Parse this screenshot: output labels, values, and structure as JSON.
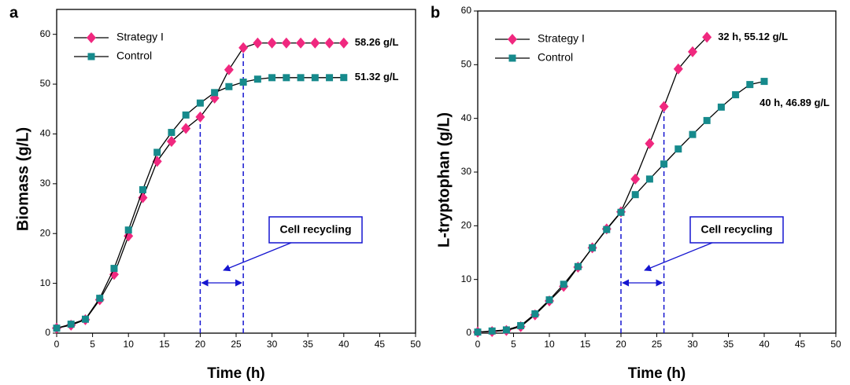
{
  "chart_data": [
    {
      "type": "line",
      "panel": "a",
      "xlabel": "Time (h)",
      "ylabel": "Biomass (g/L)",
      "xlim": [
        0,
        50
      ],
      "xticks": [
        0,
        5,
        10,
        15,
        20,
        25,
        30,
        35,
        40,
        45,
        50
      ],
      "ylim": [
        0,
        65
      ],
      "yticks": [
        0,
        10,
        20,
        30,
        40,
        50,
        60
      ],
      "series": [
        {
          "name": "Strategy I",
          "color": "#f0287f",
          "marker": "diamond",
          "x": [
            0,
            2,
            4,
            6,
            8,
            10,
            12,
            14,
            16,
            18,
            20,
            22,
            24,
            26,
            28,
            30,
            32,
            34,
            36,
            38,
            40
          ],
          "values": [
            1,
            1.6,
            2.7,
            6.7,
            11.8,
            19.5,
            27.2,
            34.5,
            38.5,
            41.1,
            43.4,
            47.2,
            52.9,
            57.3,
            58.26,
            58.26,
            58.26,
            58.26,
            58.26,
            58.26,
            58.26
          ]
        },
        {
          "name": "Control",
          "color": "#168a8c",
          "marker": "square",
          "x": [
            0,
            2,
            4,
            6,
            8,
            10,
            12,
            14,
            16,
            18,
            20,
            22,
            24,
            26,
            28,
            30,
            32,
            34,
            36,
            38,
            40
          ],
          "values": [
            1,
            1.8,
            2.8,
            7,
            13,
            20.7,
            28.8,
            36.3,
            40.3,
            43.8,
            46.2,
            48.3,
            49.5,
            50.4,
            51,
            51.3,
            51.3,
            51.3,
            51.3,
            51.3,
            51.32
          ]
        }
      ],
      "annotations": [
        "58.26 g/L",
        "51.32 g/L"
      ],
      "recycling_window": [
        20,
        26
      ],
      "recycling_label": "Cell recycling"
    },
    {
      "type": "line",
      "panel": "b",
      "xlabel": "Time (h)",
      "ylabel": "L-tryptophan (g/L)",
      "xlim": [
        0,
        50
      ],
      "xticks": [
        0,
        5,
        10,
        15,
        20,
        25,
        30,
        35,
        40,
        45,
        50
      ],
      "ylim": [
        0,
        60
      ],
      "yticks": [
        0,
        10,
        20,
        30,
        40,
        50,
        60
      ],
      "series": [
        {
          "name": "Strategy I",
          "color": "#f0287f",
          "marker": "diamond",
          "x": [
            0,
            2,
            4,
            6,
            8,
            10,
            12,
            14,
            16,
            18,
            20,
            22,
            24,
            26,
            28,
            30,
            32
          ],
          "values": [
            0.2,
            0.3,
            0.5,
            1.2,
            3.4,
            6,
            8.7,
            12.3,
            15.9,
            19.4,
            22.6,
            28.7,
            35.3,
            42.2,
            49.2,
            52.4,
            55.12
          ]
        },
        {
          "name": "Control",
          "color": "#168a8c",
          "marker": "square",
          "x": [
            0,
            2,
            4,
            6,
            8,
            10,
            12,
            14,
            16,
            18,
            20,
            22,
            24,
            26,
            28,
            30,
            32,
            34,
            36,
            38,
            40
          ],
          "values": [
            0.2,
            0.4,
            0.6,
            1.4,
            3.6,
            6.2,
            9.1,
            12.4,
            15.9,
            19.3,
            22.5,
            25.8,
            28.7,
            31.5,
            34.3,
            37,
            39.6,
            42.1,
            44.4,
            46.3,
            46.89
          ]
        }
      ],
      "annotations": [
        "32 h, 55.12 g/L",
        "40 h, 46.89 g/L"
      ],
      "recycling_window": [
        20,
        26
      ],
      "recycling_label": "Cell recycling"
    }
  ]
}
